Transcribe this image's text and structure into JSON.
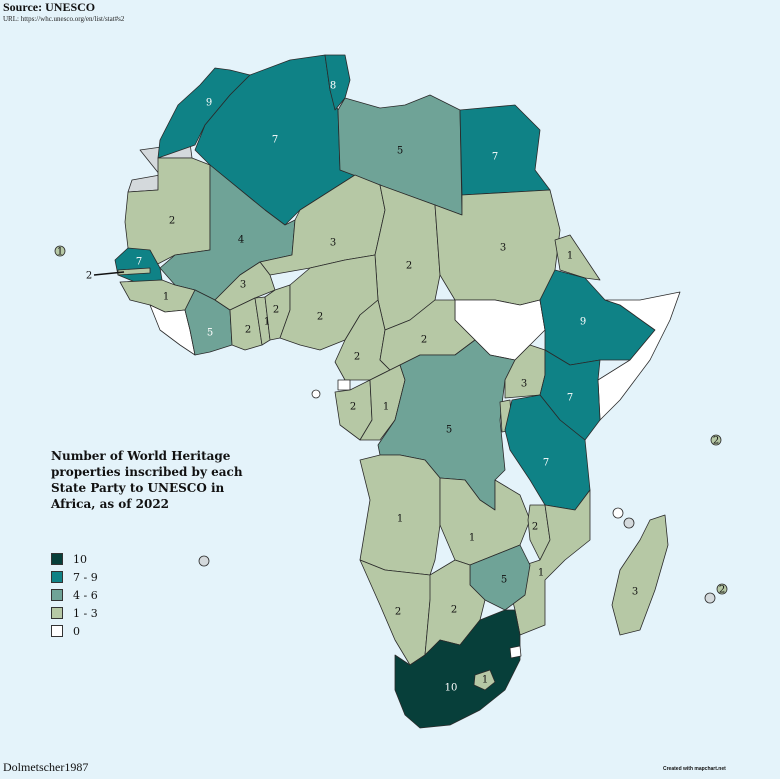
{
  "header": {
    "source_title": "Source: UNESCO",
    "source_url": "URL: https://whc.unesco.org/en/list/stat#s2"
  },
  "legend": {
    "title": "Number of World Heritage properties inscribed by each State Party to UNESCO in Africa, as of 2022",
    "items": [
      {
        "label": "10",
        "color": "#073f3a"
      },
      {
        "label": "7 - 9",
        "color": "#0f8286"
      },
      {
        "label": "4 - 6",
        "color": "#6fa397"
      },
      {
        "label": "1 - 3",
        "color": "#b6c8a5"
      },
      {
        "label": "0",
        "color": "#ffffff"
      }
    ]
  },
  "footer": {
    "author": "Dolmetscher1987",
    "credit": "Created with mapchart.net"
  },
  "map_labels": {
    "morocco": "9",
    "algeria": "7",
    "tunisia": "8",
    "libya": "5",
    "egypt": "7",
    "mauritania": "2",
    "mali": "4",
    "niger": "3",
    "chad": "2",
    "sudan": "3",
    "eritrea": "1",
    "ethiopia": "9",
    "senegal": "7",
    "gambia": "2",
    "cabo_verde": "1",
    "guinea": "1",
    "cote_divoire": "5",
    "ghana": "2",
    "burkina_faso": "3",
    "togo": "1",
    "benin": "2",
    "nigeria": "2",
    "cameroon": "2",
    "car": "2",
    "gabon": "2",
    "congo": "1",
    "drc": "5",
    "uganda": "3",
    "kenya": "7",
    "tanzania": "7",
    "seychelles": "2",
    "angola": "1",
    "zambia": "1",
    "malawi": "2",
    "mozambique": "1",
    "zimbabwe": "5",
    "namibia": "2",
    "botswana": "2",
    "madagascar": "3",
    "mauritius": "2",
    "south_africa": "10",
    "lesotho": "1"
  }
}
